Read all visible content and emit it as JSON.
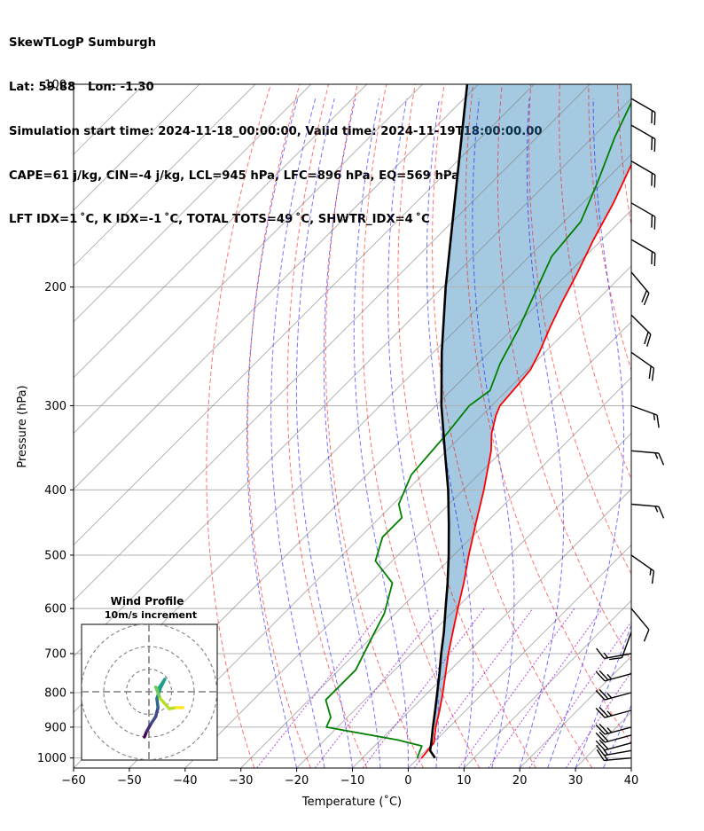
{
  "header": {
    "title": "SkewTLogP Sumburgh",
    "location": "Lat: 59.88   Lon: -1.30",
    "times": "Simulation start time: 2024-11-18_00:00:00, Valid time: 2024-11-19T18:00:00.00",
    "params": "CAPE=61 j/kg, CIN=-4 j/kg, LCL=945 hPa, LFC=896 hPa, EQ=569 hPa",
    "indices": "LFT IDX=1 ˚C, K IDX=-1 ˚C, TOTAL TOTS=49 ˚C, SHWTR_IDX=4 ˚C"
  },
  "chart_data": {
    "type": "skewt",
    "xlabel": "Temperature (˚C)",
    "ylabel": "Pressure (hPa)",
    "xlim": [
      -60,
      40
    ],
    "ylim": [
      1035,
      100
    ],
    "x_ticks": [
      -60,
      -50,
      -40,
      -30,
      -20,
      -10,
      0,
      10,
      20,
      30,
      40
    ],
    "y_ticks": [
      1000,
      900,
      800,
      700,
      600,
      500,
      400,
      300,
      200,
      100
    ],
    "colors": {
      "temperature": "#ff0000",
      "dewpoint": "#008000",
      "parcel": "#000000",
      "cape_fill": "#1f77b4",
      "dry_adiabats": "#ff0000",
      "moist_adiabats": "#0000ff",
      "mixing_ratio": "#9400d3",
      "isotherms": "#808080"
    },
    "temperature": [
      {
        "p": 1000,
        "t": 0.6
      },
      {
        "p": 950,
        "t": 0.1
      },
      {
        "p": 900,
        "t": -2.4
      },
      {
        "p": 850,
        "t": -4.7
      },
      {
        "p": 800,
        "t": -7.3
      },
      {
        "p": 750,
        "t": -10.2
      },
      {
        "p": 700,
        "t": -13.3
      },
      {
        "p": 650,
        "t": -16.4
      },
      {
        "p": 600,
        "t": -19.7
      },
      {
        "p": 550,
        "t": -23.2
      },
      {
        "p": 500,
        "t": -27.3
      },
      {
        "p": 450,
        "t": -31.6
      },
      {
        "p": 400,
        "t": -36.3
      },
      {
        "p": 350,
        "t": -42.0
      },
      {
        "p": 330,
        "t": -45.0
      },
      {
        "p": 310,
        "t": -47.5
      },
      {
        "p": 300,
        "t": -48.5
      },
      {
        "p": 280,
        "t": -49.0
      },
      {
        "p": 265,
        "t": -49.5
      },
      {
        "p": 250,
        "t": -51.0
      },
      {
        "p": 230,
        "t": -53.5
      },
      {
        "p": 210,
        "t": -56.0
      },
      {
        "p": 190,
        "t": -58.5
      },
      {
        "p": 170,
        "t": -61.5
      },
      {
        "p": 150,
        "t": -64.5
      },
      {
        "p": 130,
        "t": -68.5
      },
      {
        "p": 115,
        "t": -71.0
      },
      {
        "p": 100,
        "t": -74.0
      }
    ],
    "dewpoint": [
      {
        "p": 1000,
        "t": -0.2
      },
      {
        "p": 960,
        "t": -1.5
      },
      {
        "p": 940,
        "t": -7.0
      },
      {
        "p": 900,
        "t": -22.0
      },
      {
        "p": 870,
        "t": -23.0
      },
      {
        "p": 820,
        "t": -27.0
      },
      {
        "p": 740,
        "t": -27.0
      },
      {
        "p": 660,
        "t": -30.0
      },
      {
        "p": 610,
        "t": -32.0
      },
      {
        "p": 550,
        "t": -36.0
      },
      {
        "p": 510,
        "t": -43.0
      },
      {
        "p": 470,
        "t": -46.0
      },
      {
        "p": 440,
        "t": -46.0
      },
      {
        "p": 420,
        "t": -49.0
      },
      {
        "p": 380,
        "t": -52.0
      },
      {
        "p": 330,
        "t": -53.0
      },
      {
        "p": 300,
        "t": -54.0
      },
      {
        "p": 285,
        "t": -53.0
      },
      {
        "p": 260,
        "t": -56.0
      },
      {
        "p": 230,
        "t": -59.0
      },
      {
        "p": 200,
        "t": -63.0
      },
      {
        "p": 180,
        "t": -66.0
      },
      {
        "p": 160,
        "t": -67.0
      },
      {
        "p": 140,
        "t": -71.0
      },
      {
        "p": 120,
        "t": -76.0
      },
      {
        "p": 100,
        "t": -81.0
      }
    ],
    "parcel": [
      {
        "p": 1000,
        "t": 3.0
      },
      {
        "p": 975,
        "t": 0.8
      },
      {
        "p": 945,
        "t": -0.6
      },
      {
        "p": 900,
        "t": -2.9
      },
      {
        "p": 850,
        "t": -5.5
      },
      {
        "p": 800,
        "t": -8.3
      },
      {
        "p": 750,
        "t": -11.3
      },
      {
        "p": 700,
        "t": -14.6
      },
      {
        "p": 650,
        "t": -18.0
      },
      {
        "p": 600,
        "t": -21.9
      },
      {
        "p": 550,
        "t": -26.1
      },
      {
        "p": 500,
        "t": -30.9
      },
      {
        "p": 450,
        "t": -36.4
      },
      {
        "p": 400,
        "t": -42.7
      },
      {
        "p": 350,
        "t": -50.3
      },
      {
        "p": 300,
        "t": -59.0
      },
      {
        "p": 250,
        "t": -68.5
      },
      {
        "p": 200,
        "t": -79.5
      },
      {
        "p": 150,
        "t": -93.0
      },
      {
        "p": 100,
        "t": -112.0
      }
    ],
    "wind_barbs": [
      {
        "p": 1000,
        "speed_kt": 15,
        "dir_deg": 265
      },
      {
        "p": 975,
        "speed_kt": 15,
        "dir_deg": 260
      },
      {
        "p": 950,
        "speed_kt": 20,
        "dir_deg": 255
      },
      {
        "p": 925,
        "speed_kt": 20,
        "dir_deg": 255
      },
      {
        "p": 900,
        "speed_kt": 25,
        "dir_deg": 255
      },
      {
        "p": 850,
        "speed_kt": 25,
        "dir_deg": 255
      },
      {
        "p": 800,
        "speed_kt": 25,
        "dir_deg": 255
      },
      {
        "p": 750,
        "speed_kt": 25,
        "dir_deg": 255
      },
      {
        "p": 700,
        "speed_kt": 15,
        "dir_deg": 260
      },
      {
        "p": 650,
        "speed_kt": 10,
        "dir_deg": 200
      },
      {
        "p": 600,
        "speed_kt": 10,
        "dir_deg": 140
      },
      {
        "p": 500,
        "speed_kt": 15,
        "dir_deg": 125
      },
      {
        "p": 420,
        "speed_kt": 15,
        "dir_deg": 95
      },
      {
        "p": 350,
        "speed_kt": 15,
        "dir_deg": 95
      },
      {
        "p": 300,
        "speed_kt": 15,
        "dir_deg": 110
      },
      {
        "p": 250,
        "speed_kt": 20,
        "dir_deg": 125
      },
      {
        "p": 220,
        "speed_kt": 20,
        "dir_deg": 135
      },
      {
        "p": 190,
        "speed_kt": 20,
        "dir_deg": 140
      },
      {
        "p": 170,
        "speed_kt": 20,
        "dir_deg": 120
      },
      {
        "p": 150,
        "speed_kt": 20,
        "dir_deg": 120
      },
      {
        "p": 130,
        "speed_kt": 20,
        "dir_deg": 120
      },
      {
        "p": 115,
        "speed_kt": 20,
        "dir_deg": 120
      },
      {
        "p": 105,
        "speed_kt": 20,
        "dir_deg": 120
      }
    ],
    "hodograph": {
      "title": "Wind Profile",
      "subtitle": "10m/s increment",
      "ring_radii_ms": [
        10,
        20,
        30
      ],
      "points": [
        {
          "u": -2.0,
          "v": -20.0
        },
        {
          "u": -1.0,
          "v": -17.5
        },
        {
          "u": 1.0,
          "v": -14.0
        },
        {
          "u": 3.0,
          "v": -11.0
        },
        {
          "u": 4.0,
          "v": -7.0
        },
        {
          "u": 3.5,
          "v": -3.0
        },
        {
          "u": 5.0,
          "v": 1.5
        },
        {
          "u": 7.0,
          "v": 5.5
        },
        {
          "u": 4.0,
          "v": 1.0
        },
        {
          "u": 3.0,
          "v": 2.0
        },
        {
          "u": 5.0,
          "v": -3.0
        },
        {
          "u": 9.0,
          "v": -7.5
        },
        {
          "u": 12.0,
          "v": -7.0
        },
        {
          "u": 15.0,
          "v": -7.0
        }
      ]
    }
  }
}
